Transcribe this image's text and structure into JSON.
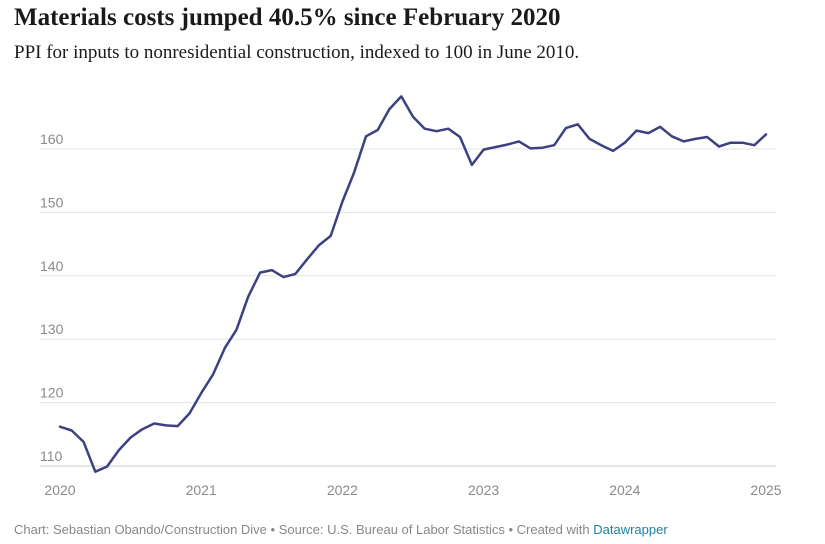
{
  "title": "Materials costs jumped 40.5% since February 2020",
  "subtitle": "PPI for inputs to nonresidential construction, indexed to 100 in June 2010.",
  "footer": {
    "credit": "Chart: Sebastian Obando/Construction Dive • Source: U.S. Bureau of Labor Statistics • Created with ",
    "link": "Datawrapper"
  },
  "colors": {
    "line": "#3f4082",
    "grid": "#e3e3e3",
    "axis": "#8a8a8a",
    "link": "#1d81a2"
  },
  "chart_data": {
    "type": "line",
    "title": "Materials costs jumped 40.5% since February 2020",
    "subtitle": "PPI for inputs to nonresidential construction, indexed to 100 in June 2010.",
    "xlabel": "",
    "ylabel": "",
    "xlim": [
      2020,
      2025
    ],
    "ylim": [
      109,
      168
    ],
    "grid": true,
    "legend": "none",
    "x_ticks": [
      2020,
      2021,
      2022,
      2023,
      2024,
      2025
    ],
    "y_ticks": [
      110,
      120,
      130,
      140,
      150,
      160
    ],
    "series": [
      {
        "color": "#3f4082",
        "x": [
          2020.0,
          2020.083,
          2020.167,
          2020.25,
          2020.333,
          2020.417,
          2020.5,
          2020.583,
          2020.667,
          2020.75,
          2020.833,
          2020.917,
          2021.0,
          2021.083,
          2021.167,
          2021.25,
          2021.333,
          2021.417,
          2021.5,
          2021.583,
          2021.667,
          2021.75,
          2021.833,
          2021.917,
          2022.0,
          2022.083,
          2022.167,
          2022.25,
          2022.333,
          2022.417,
          2022.5,
          2022.583,
          2022.667,
          2022.75,
          2022.833,
          2022.917,
          2023.0,
          2023.083,
          2023.167,
          2023.25,
          2023.333,
          2023.417,
          2023.5,
          2023.583,
          2023.667,
          2023.75,
          2023.833,
          2023.917,
          2024.0,
          2024.083,
          2024.167,
          2024.25,
          2024.333,
          2024.417,
          2024.5,
          2024.583,
          2024.667,
          2024.75,
          2024.833,
          2024.917,
          2025.0
        ],
        "values": [
          116.2,
          115.6,
          113.8,
          109.1,
          109.9,
          112.5,
          114.5,
          115.8,
          116.7,
          116.4,
          116.3,
          118.3,
          121.5,
          124.4,
          128.6,
          131.5,
          136.7,
          140.5,
          140.9,
          139.8,
          140.3,
          142.6,
          144.8,
          146.3,
          151.7,
          156.3,
          162.0,
          163.0,
          166.3,
          168.3,
          165.1,
          163.2,
          162.8,
          163.2,
          161.9,
          157.5,
          159.9,
          160.3,
          160.7,
          161.2,
          160.1,
          160.2,
          160.6,
          163.3,
          163.9,
          161.6,
          160.6,
          159.7,
          161.0,
          162.9,
          162.5,
          163.5,
          162.0,
          161.2,
          161.6,
          161.9,
          160.4,
          161.0,
          161.0,
          160.6,
          162.3
        ]
      }
    ]
  }
}
